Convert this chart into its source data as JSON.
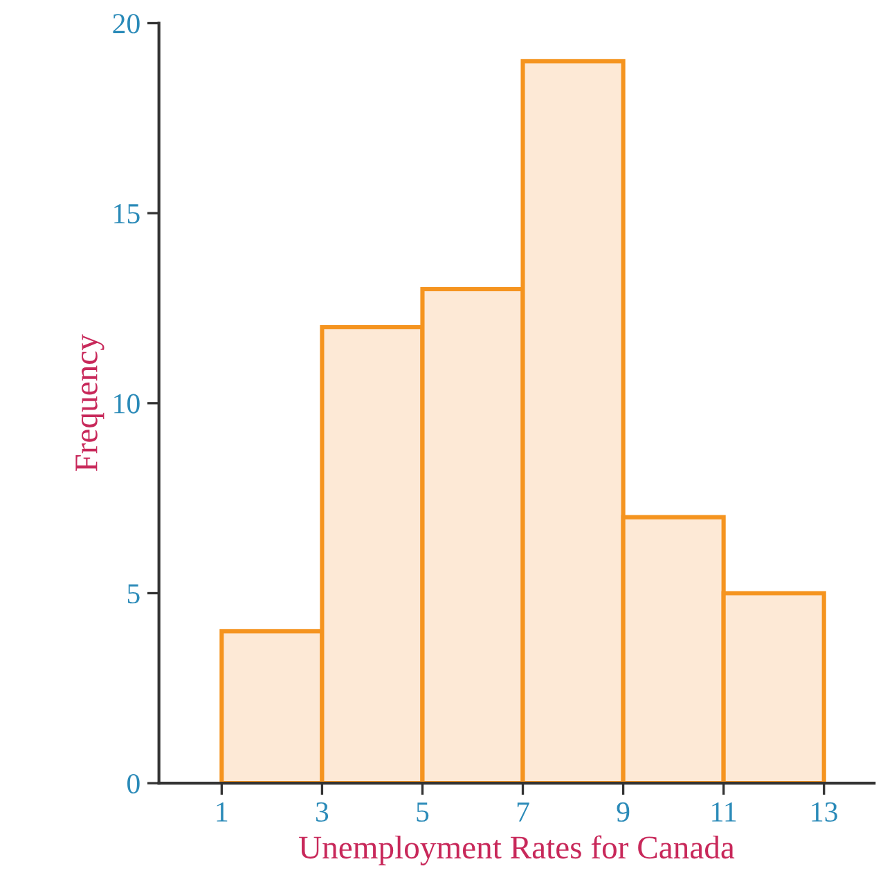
{
  "chart_data": {
    "type": "histogram",
    "xlabel": "Unemployment Rates for Canada",
    "ylabel": "Frequency",
    "bins": [
      1,
      3,
      5,
      7,
      9,
      11,
      13
    ],
    "values": [
      4,
      12,
      13,
      19,
      7,
      5
    ],
    "color": "#fde9d6",
    "xlim": [
      -0.25,
      14
    ],
    "ylim": [
      0,
      20
    ],
    "xticks": [
      1,
      3,
      5,
      7,
      9,
      11,
      13
    ],
    "yticks": [
      0,
      5,
      10,
      15,
      20
    ],
    "grid": false
  }
}
